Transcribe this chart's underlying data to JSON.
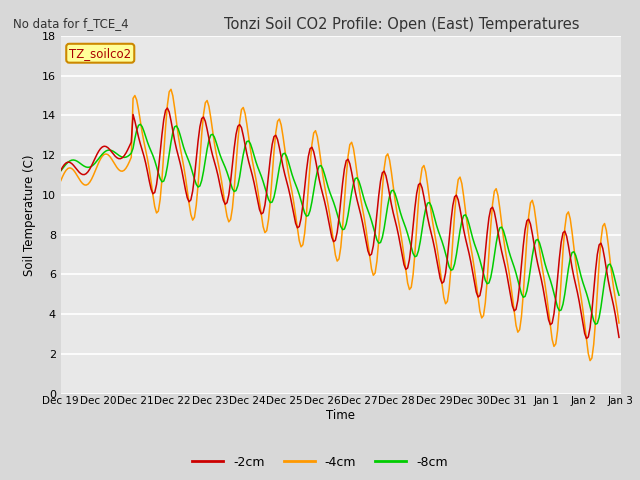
{
  "title": "Tonzi Soil CO2 Profile: Open (East) Temperatures",
  "subtitle": "No data for f_TCE_4",
  "ylabel": "Soil Temperature (C)",
  "xlabel": "Time",
  "dataset_label": "TZ_soilco2",
  "ylim": [
    0,
    18
  ],
  "yticks": [
    0,
    2,
    4,
    6,
    8,
    10,
    12,
    14,
    16,
    18
  ],
  "legend_labels": [
    "-2cm",
    "-4cm",
    "-8cm"
  ],
  "line_colors": [
    "#cc0000",
    "#ff9900",
    "#00cc00"
  ],
  "bg_color": "#d8d8d8",
  "plot_bg": "#e8e8e8",
  "xtick_labels": [
    "Dec 19",
    "Dec 20",
    "Dec 21",
    "Dec 22",
    "Dec 23",
    "Dec 24",
    "Dec 25",
    "Dec 26",
    "Dec 27",
    "Dec 28",
    "Dec 29",
    "Dec 30",
    "Dec 31",
    "Jan 1",
    "Jan 2",
    "Jan 3"
  ]
}
